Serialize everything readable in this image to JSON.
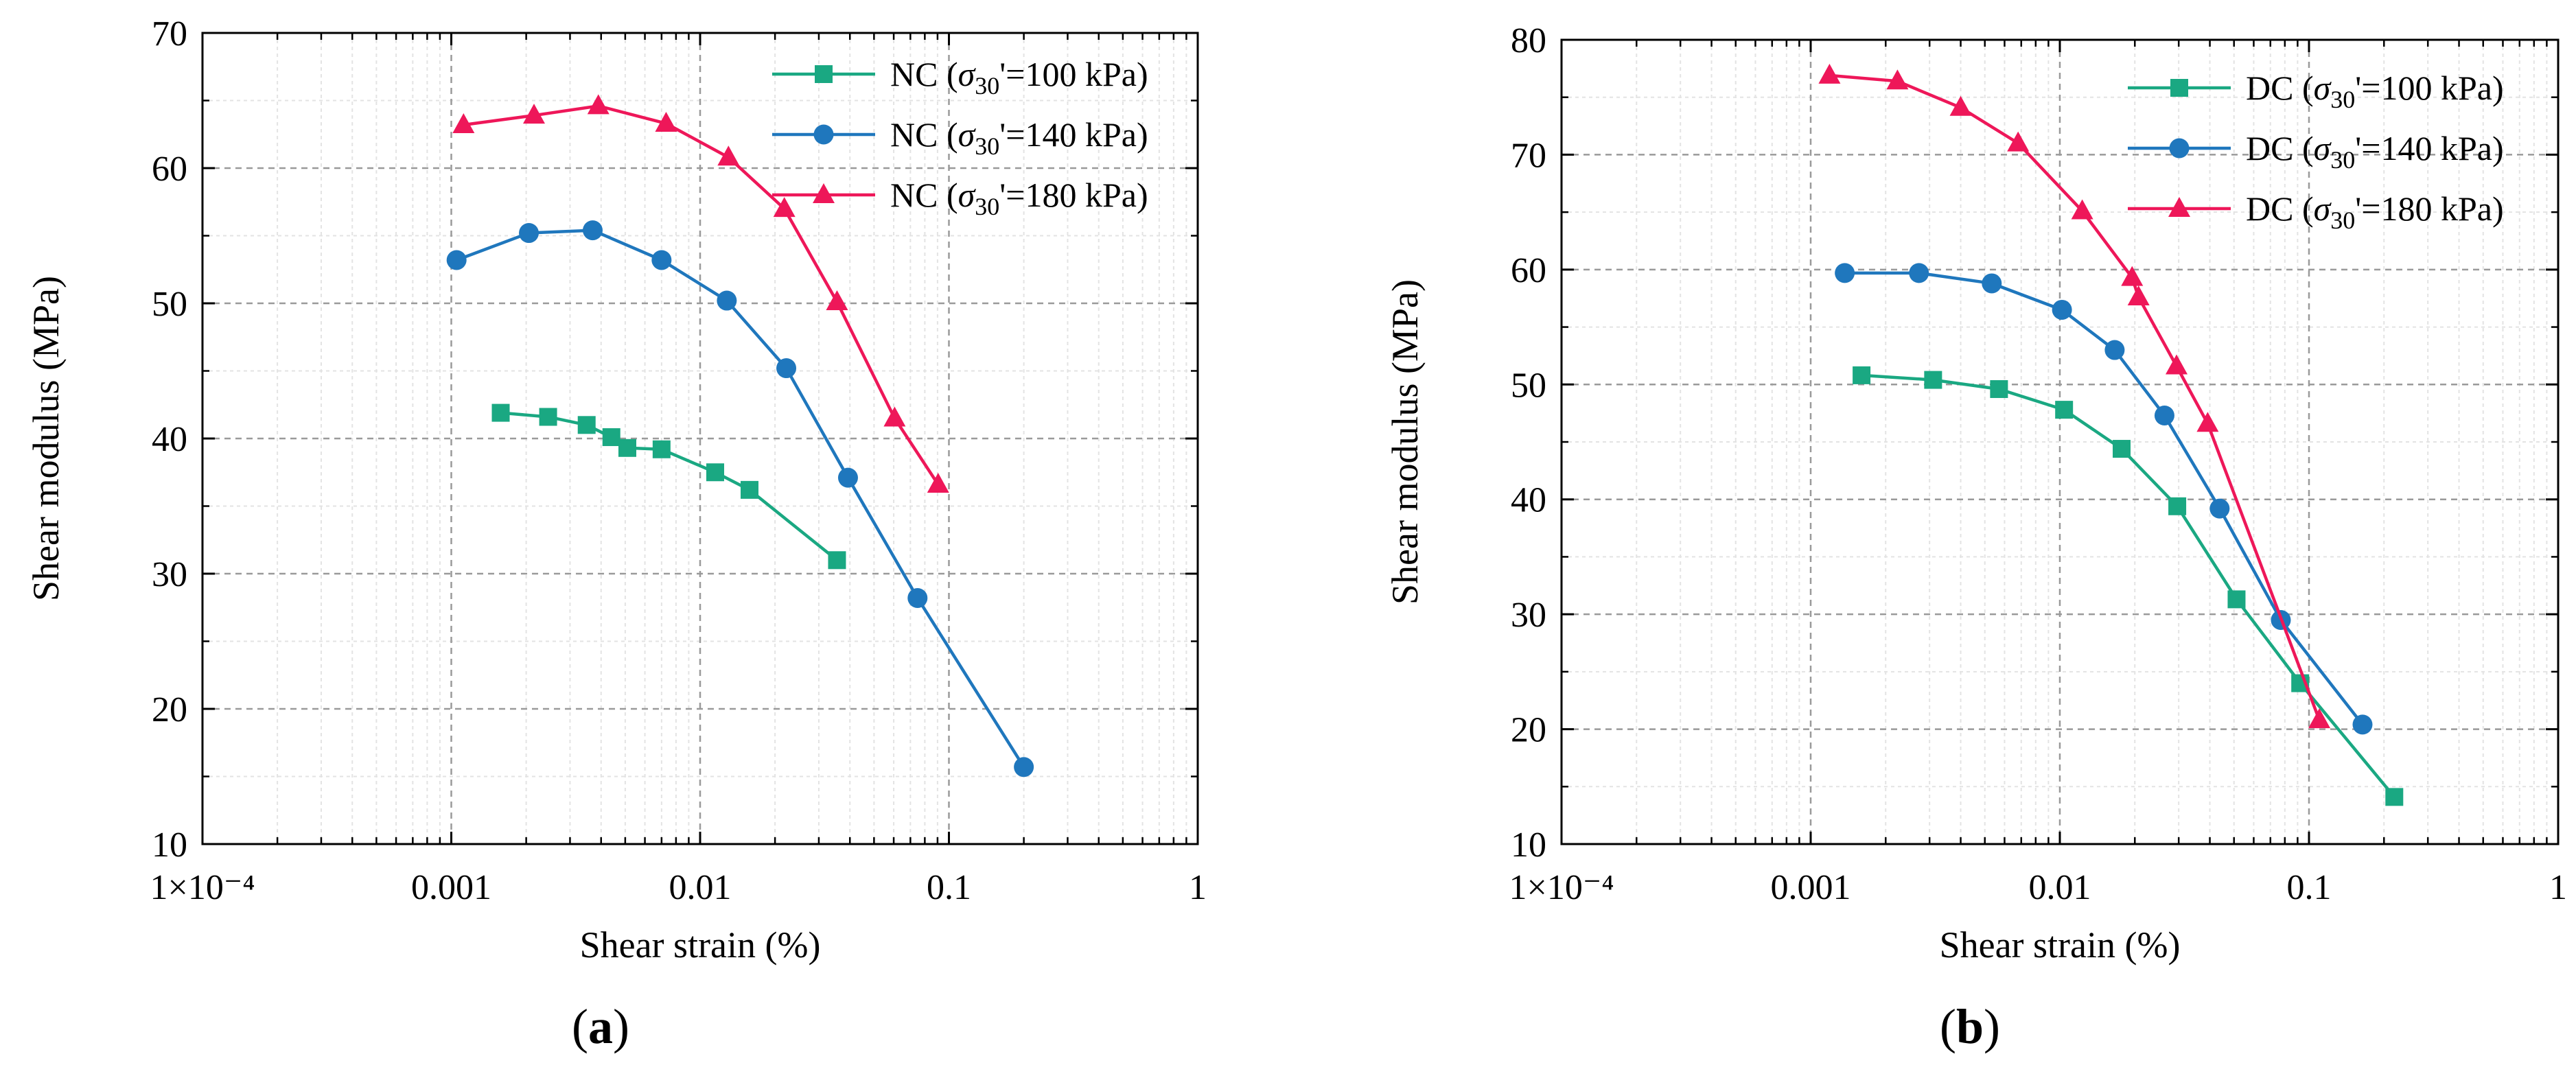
{
  "chart_data": [
    {
      "type": "line",
      "panel_label": "a",
      "xlabel": "Shear strain (%)",
      "ylabel": "Shear modulus (MPa)",
      "x_scale": "log",
      "xlim": [
        0.0001,
        1
      ],
      "ylim": [
        10,
        70
      ],
      "x_ticks": [
        0.0001,
        0.001,
        0.01,
        0.1,
        1
      ],
      "x_tick_labels": [
        "1×10⁻⁴",
        "0.001",
        "0.01",
        "0.1",
        "1"
      ],
      "y_ticks": [
        10,
        20,
        30,
        40,
        50,
        60,
        70
      ],
      "y_tick_labels": [
        "10",
        "20",
        "30",
        "40",
        "50",
        "60",
        "70"
      ],
      "grid": true,
      "legend_position": "top-right",
      "series": [
        {
          "name": "NC (σ30'=100 kPa)",
          "legend_prefix": "NC (",
          "legend_var": "σ",
          "legend_sub": "30",
          "legend_suffix": "'=100 kPa)",
          "color": "#1aa882",
          "marker": "square",
          "x": [
            0.00158,
            0.00245,
            0.0035,
            0.0044,
            0.0051,
            0.007,
            0.0115,
            0.0158,
            0.0355
          ],
          "y": [
            41.9,
            41.6,
            41.0,
            40.1,
            39.3,
            39.2,
            37.5,
            36.2,
            31.0
          ]
        },
        {
          "name": "NC (σ30'=140 kPa)",
          "legend_prefix": "NC (",
          "legend_var": "σ",
          "legend_sub": "30",
          "legend_suffix": "'=140 kPa)",
          "color": "#1f77bd",
          "marker": "circle",
          "x": [
            0.00105,
            0.00205,
            0.0037,
            0.007,
            0.0128,
            0.0222,
            0.0393,
            0.0748,
            0.2
          ],
          "y": [
            53.2,
            55.2,
            55.4,
            53.2,
            50.2,
            45.2,
            37.1,
            28.2,
            15.7
          ]
        },
        {
          "name": "NC (σ30'=180 kPa)",
          "legend_prefix": "NC (",
          "legend_var": "σ",
          "legend_sub": "30",
          "legend_suffix": "'=180 kPa)",
          "color": "#ee1759",
          "marker": "triangle",
          "x": [
            0.00112,
            0.00215,
            0.0039,
            0.0073,
            0.013,
            0.0218,
            0.0355,
            0.0605,
            0.0905
          ],
          "y": [
            63.2,
            63.9,
            64.6,
            63.3,
            60.8,
            57.0,
            50.1,
            41.5,
            36.6
          ]
        }
      ]
    },
    {
      "type": "line",
      "panel_label": "b",
      "xlabel": "Shear strain (%)",
      "ylabel": "Shear modulus (MPa)",
      "x_scale": "log",
      "xlim": [
        0.0001,
        1
      ],
      "ylim": [
        10,
        80
      ],
      "x_ticks": [
        0.0001,
        0.001,
        0.01,
        0.1,
        1
      ],
      "x_tick_labels": [
        "1×10⁻⁴",
        "0.001",
        "0.01",
        "0.1",
        "1"
      ],
      "y_ticks": [
        10,
        20,
        30,
        40,
        50,
        60,
        70,
        80
      ],
      "y_tick_labels": [
        "10",
        "20",
        "30",
        "40",
        "50",
        "60",
        "70",
        "80"
      ],
      "grid": true,
      "legend_position": "top-right",
      "series": [
        {
          "name": "DC (σ30'=100 kPa)",
          "legend_prefix": "DC (",
          "legend_var": "σ",
          "legend_sub": "30",
          "legend_suffix": "'=100 kPa)",
          "color": "#1aa882",
          "marker": "square",
          "x": [
            0.0016,
            0.0031,
            0.0057,
            0.0104,
            0.0177,
            0.0296,
            0.0512,
            0.0922,
            0.22
          ],
          "y": [
            50.8,
            50.4,
            49.6,
            47.8,
            44.4,
            39.4,
            31.3,
            24.0,
            14.1
          ]
        },
        {
          "name": "DC (σ30'=140 kPa)",
          "legend_prefix": "DC (",
          "legend_var": "σ",
          "legend_sub": "30",
          "legend_suffix": "'=140 kPa)",
          "color": "#1f77bd",
          "marker": "circle",
          "x": [
            0.00137,
            0.00272,
            0.00533,
            0.0102,
            0.0166,
            0.0263,
            0.0438,
            0.0771,
            0.164
          ],
          "y": [
            59.7,
            59.7,
            58.8,
            56.5,
            53.0,
            47.3,
            39.2,
            29.5,
            20.4
          ]
        },
        {
          "name": "DC (σ30'=180 kPa)",
          "legend_prefix": "DC (",
          "legend_var": "σ",
          "legend_sub": "30",
          "legend_suffix": "'=180 kPa)",
          "color": "#ee1759",
          "marker": "triangle",
          "x": [
            0.00119,
            0.00223,
            0.004,
            0.0068,
            0.0123,
            0.0195,
            0.0207,
            0.0294,
            0.0392,
            0.11
          ],
          "y": [
            76.9,
            76.4,
            74.1,
            71.0,
            65.1,
            59.3,
            57.6,
            51.6,
            46.6,
            20.8
          ]
        }
      ]
    }
  ]
}
